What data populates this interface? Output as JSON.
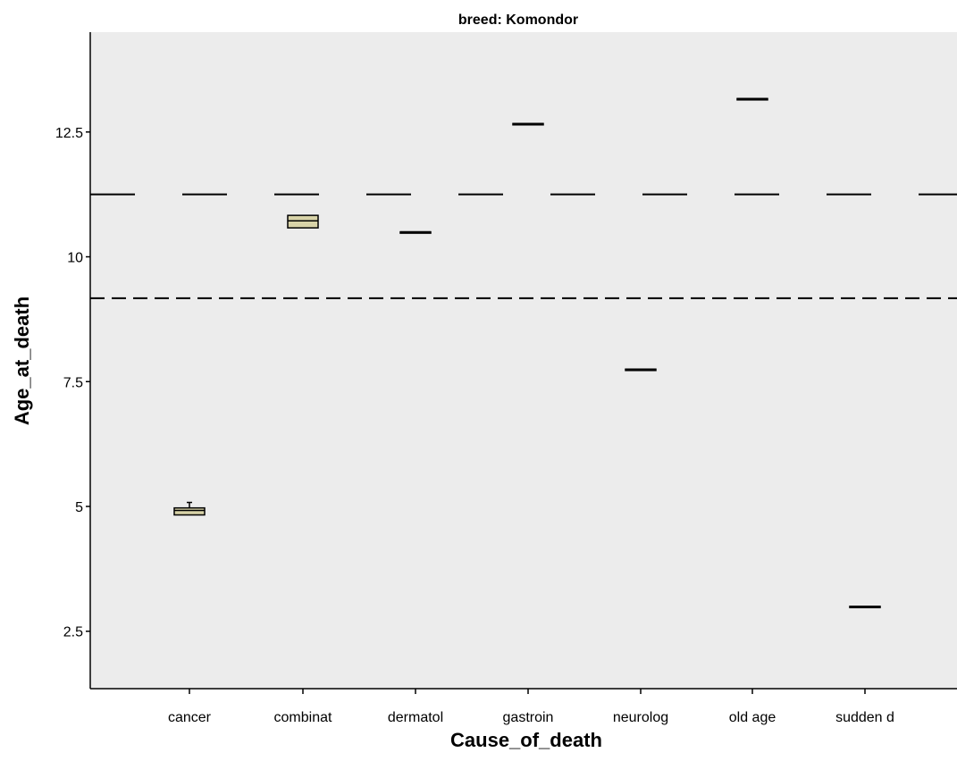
{
  "chart_data": {
    "type": "box",
    "title": "breed: Komondor",
    "xlabel": "Cause_of_death",
    "ylabel": "Age_at_death",
    "categories": [
      "cancer",
      "combinat",
      "dermatol",
      "gastroin",
      "neurolog",
      "old age",
      "sudden d"
    ],
    "ylim": [
      1.35,
      14.5
    ],
    "yticks": [
      2.5,
      5,
      7.5,
      10,
      12.5
    ],
    "ytick_labels": [
      "2.5",
      "5",
      "7.5",
      "10",
      "12.5"
    ],
    "boxes": [
      {
        "category": "cancer",
        "min": 4.83,
        "q1": 4.83,
        "median": 4.92,
        "q3": 4.97,
        "max": 5.08
      },
      {
        "category": "combinat",
        "min": 10.58,
        "q1": 10.58,
        "median": 10.72,
        "q3": 10.83,
        "max": 10.83
      },
      {
        "category": "dermatol",
        "min": 10.5,
        "q1": 10.5,
        "median": 10.5,
        "q3": 10.5,
        "max": 10.5
      },
      {
        "category": "gastroin",
        "min": 12.67,
        "q1": 12.67,
        "median": 12.67,
        "q3": 12.67,
        "max": 12.67
      },
      {
        "category": "neurolog",
        "min": 7.75,
        "q1": 7.75,
        "median": 7.75,
        "q3": 7.75,
        "max": 7.75
      },
      {
        "category": "old age",
        "min": 13.17,
        "q1": 13.17,
        "median": 13.17,
        "q3": 13.17,
        "max": 13.17
      },
      {
        "category": "sudden d",
        "min": 3.0,
        "q1": 3.0,
        "median": 3.0,
        "q3": 3.0,
        "max": 3.0
      }
    ],
    "reference_lines": [
      {
        "y": 11.25,
        "style": "long-dash"
      },
      {
        "y": 9.17,
        "style": "short-dash"
      }
    ],
    "grid": false,
    "colors": {
      "plot_bg": "#ececec",
      "box_fill": "#d8d3a8",
      "line": "#000000"
    }
  }
}
